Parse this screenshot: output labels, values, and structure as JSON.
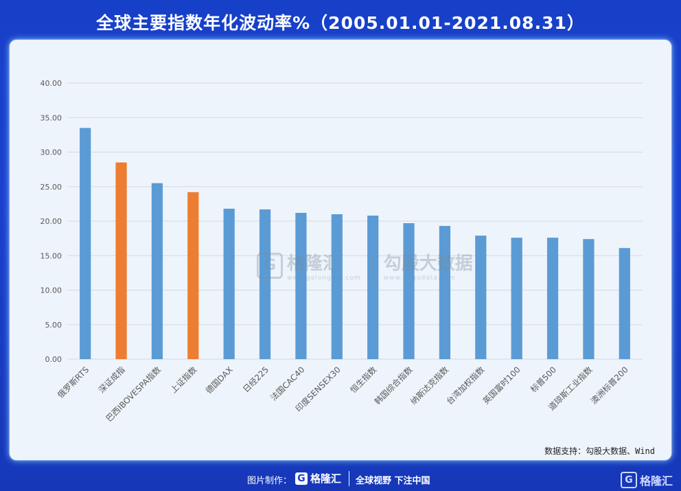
{
  "header": {
    "title": "全球主要指数年化波动率%（2005.01.01-2021.08.31）"
  },
  "source_note": "数据支持：勾股大数据、Wind",
  "watermark": {
    "brand1": "格隆汇",
    "brand1_url": "www.gelonghui.com",
    "brand2": "勾股大数据",
    "brand2_url": "www.gogudata.com"
  },
  "footer": {
    "made_by": "图片制作：",
    "logo": "格隆汇",
    "slogan": "全球视野 下注中国",
    "corner_logo": "格隆汇"
  },
  "colors": {
    "blue": "#5b9bd5",
    "orange": "#ed7d31",
    "background": "#1a3fcf",
    "panel": "#eef4fb"
  },
  "chart_data": {
    "type": "bar",
    "categories": [
      "俄罗斯RTS",
      "深证成指",
      "巴西IBOVESPA指数",
      "上证指数",
      "德国DAX",
      "日经225",
      "法国CAC40",
      "印度SENSEX30",
      "恒生指数",
      "韩国综合指数",
      "纳斯达克指数",
      "台湾加权指数",
      "英国富时100",
      "标普500",
      "道琼斯工业指数",
      "澳洲标普200"
    ],
    "values": [
      33.5,
      28.5,
      25.5,
      24.2,
      21.8,
      21.7,
      21.2,
      21.0,
      20.8,
      19.7,
      19.3,
      17.9,
      17.6,
      17.6,
      17.4,
      16.1
    ],
    "highlight": [
      "深证成指",
      "上证指数"
    ],
    "yticks": [
      "0.00",
      "5.00",
      "10.00",
      "15.00",
      "20.00",
      "25.00",
      "30.00",
      "35.00",
      "40.00"
    ],
    "ylim": [
      0,
      40
    ],
    "grid": true,
    "legend": "none"
  }
}
